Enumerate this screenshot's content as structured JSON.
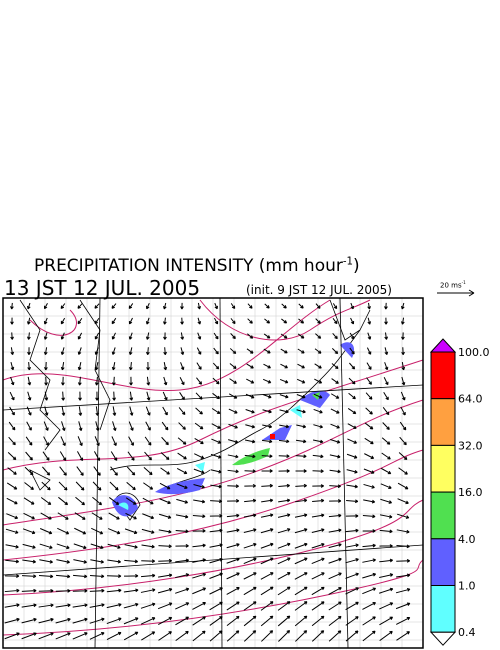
{
  "header": {
    "title": {
      "main": "PRECIPITATION INTENSITY (mm hour",
      "exponent": "-1",
      "close": ")"
    },
    "valid_time": "13 JST 12 JUL. 2005",
    "init_time": "(init. 9 JST 12 JUL. 2005)"
  },
  "wind_legend": {
    "label": "20 ms",
    "exponent": "-1"
  },
  "colorbar": {
    "labels": [
      "100.0",
      "64.0",
      "32.0",
      "16.0",
      "4.0",
      "1.0",
      "0.4"
    ],
    "colors": [
      "#cc00ff",
      "#ff0000",
      "#ffa040",
      "#ffff60",
      "#50e050",
      "#6060ff",
      "#60ffff",
      "#ffffff"
    ]
  }
}
